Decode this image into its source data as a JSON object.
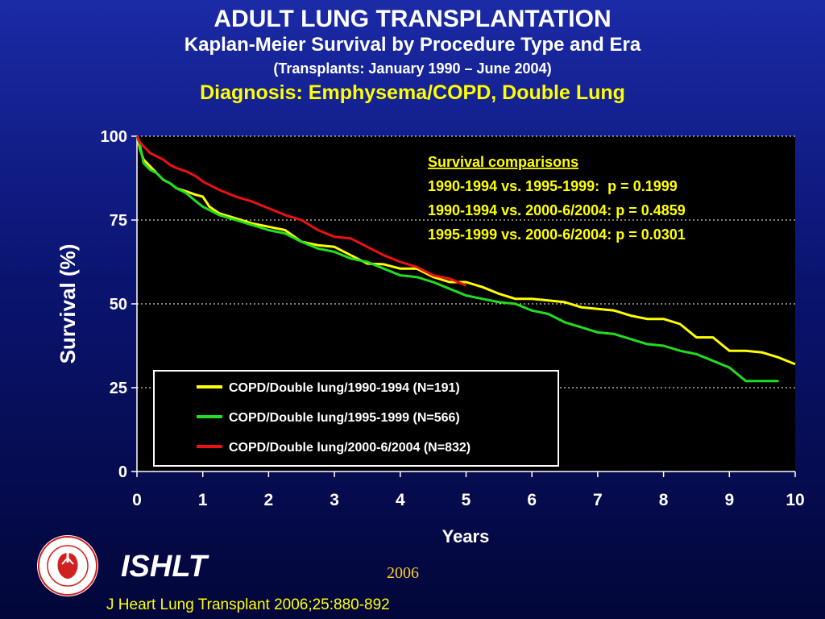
{
  "header": {
    "title": "ADULT LUNG TRANSPLANTATION",
    "subtitle": "Kaplan-Meier Survival by Procedure Type and Era",
    "period": "(Transplants: January 1990 – June 2004)",
    "diagnosis": "Diagnosis: Emphysema/COPD, Double Lung"
  },
  "chart_data": {
    "type": "line",
    "xlabel": "Years",
    "ylabel": "Survival (%)",
    "xlim": [
      0,
      10
    ],
    "ylim": [
      0,
      100
    ],
    "x_ticks": [
      "0",
      "1",
      "2",
      "3",
      "4",
      "5",
      "6",
      "7",
      "8",
      "9",
      "10"
    ],
    "y_ticks": [
      "0",
      "25",
      "50",
      "75",
      "100"
    ],
    "grid": "horizontal dotted at 25, 50, 75, 100",
    "legend_position": "bottom-left",
    "colors": {
      "plot_bg": "#000000",
      "axis_text": "#ffffff",
      "annotation": "#ffff00"
    },
    "annotation": {
      "heading": "Survival comparisons",
      "lines": [
        "1990-1994 vs. 1995-1999:  p = 0.1999",
        "1990-1994 vs. 2000-6/2004: p = 0.4859",
        "1995-1999 vs. 2000-6/2004: p = 0.0301"
      ]
    },
    "series": [
      {
        "name": "COPD/Double lung/1990-1994 (N=191)",
        "color": "#ffff00",
        "x": [
          0,
          0.05,
          0.1,
          0.15,
          0.2,
          0.3,
          0.4,
          0.5,
          0.6,
          0.75,
          0.9,
          1.0,
          1.1,
          1.25,
          1.5,
          1.75,
          2.0,
          2.25,
          2.5,
          2.75,
          3.0,
          3.25,
          3.5,
          3.75,
          4.0,
          4.25,
          4.5,
          4.75,
          5.0,
          5.25,
          5.5,
          5.75,
          6.0,
          6.25,
          6.5,
          6.75,
          7.0,
          7.25,
          7.5,
          7.75,
          8.0,
          8.25,
          8.5,
          8.75,
          9.0,
          9.25,
          9.5,
          9.75,
          10.0
        ],
        "y": [
          100,
          96,
          93,
          92,
          91,
          89,
          87,
          86,
          84.5,
          83.5,
          82.5,
          82,
          79,
          77,
          75.5,
          74,
          73,
          72,
          68.5,
          67.5,
          67,
          64.5,
          62,
          61.8,
          60.5,
          60.5,
          58,
          56.5,
          56.5,
          55,
          53,
          51.5,
          51.5,
          51,
          50.5,
          49,
          48.5,
          48,
          46.5,
          45.5,
          45.5,
          44,
          40,
          40,
          36,
          36,
          35.5,
          34,
          32
        ]
      },
      {
        "name": "COPD/Double lung/1995-1999 (N=566)",
        "color": "#22dd22",
        "x": [
          0,
          0.05,
          0.1,
          0.2,
          0.3,
          0.4,
          0.5,
          0.6,
          0.75,
          0.9,
          1.0,
          1.25,
          1.5,
          1.75,
          2.0,
          2.25,
          2.5,
          2.75,
          3.0,
          3.25,
          3.5,
          3.75,
          4.0,
          4.25,
          4.5,
          4.75,
          5.0,
          5.25,
          5.5,
          5.75,
          6.0,
          6.25,
          6.5,
          6.75,
          7.0,
          7.25,
          7.5,
          7.75,
          8.0,
          8.25,
          8.5,
          8.75,
          9.0,
          9.25,
          9.5,
          9.75
        ],
        "y": [
          100,
          97,
          92,
          90,
          89,
          87,
          86,
          84.5,
          83,
          80.5,
          79,
          76.5,
          75,
          73.5,
          72,
          71,
          68.5,
          66.5,
          65.5,
          63.5,
          62.5,
          60.5,
          58.5,
          58,
          56.5,
          54.5,
          52.5,
          51.5,
          50.5,
          50,
          48,
          47,
          44.5,
          43,
          41.5,
          41,
          39.5,
          38,
          37.5,
          36,
          35,
          33,
          31,
          27,
          27,
          27
        ]
      },
      {
        "name": "COPD/Double lung/2000-6/2004 (N=832)",
        "color": "#ee1111",
        "x": [
          0,
          0.05,
          0.1,
          0.15,
          0.2,
          0.3,
          0.4,
          0.5,
          0.6,
          0.75,
          0.9,
          1.0,
          1.25,
          1.5,
          1.75,
          2.0,
          2.25,
          2.5,
          2.75,
          3.0,
          3.25,
          3.5,
          3.75,
          4.0,
          4.25,
          4.5,
          4.75,
          5.0
        ],
        "y": [
          100,
          98,
          97,
          96,
          95,
          94,
          93,
          91.5,
          90.5,
          89.5,
          88,
          86.5,
          84,
          82,
          80.5,
          78.5,
          76.5,
          75,
          72,
          70,
          69.5,
          67,
          64.5,
          62.5,
          61,
          58.5,
          57.5,
          55.5
        ]
      }
    ]
  },
  "footer": {
    "logo_text": "INTERNATIONAL SOCIETY FOR HEART & LUNG TRANSPLANTATION",
    "org": "ISHLT",
    "year": "2006",
    "citation": "J Heart Lung Transplant 2006;25:880-892"
  }
}
